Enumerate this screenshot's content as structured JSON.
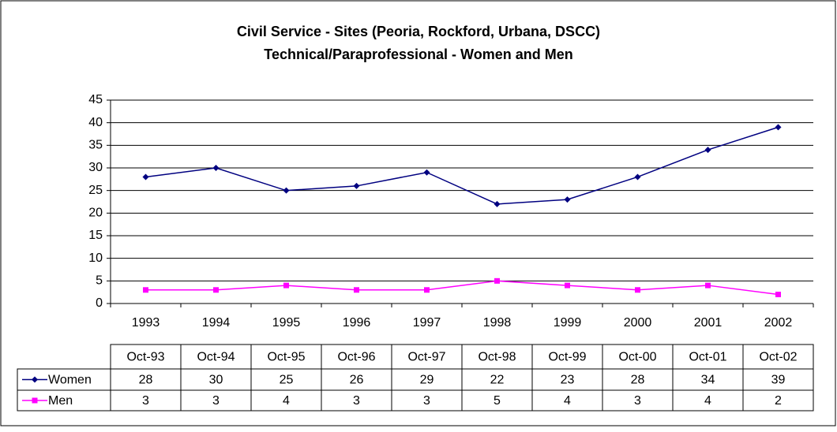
{
  "chart_data": {
    "type": "line",
    "title": "Civil Service - Sites (Peoria, Rockford, Urbana, DSCC)",
    "subtitle": "Technical/Paraprofessional - Women and Men",
    "categories": [
      "1993",
      "1994",
      "1995",
      "1996",
      "1997",
      "1998",
      "1999",
      "2000",
      "2001",
      "2002"
    ],
    "table_columns": [
      "Oct-93",
      "Oct-94",
      "Oct-95",
      "Oct-96",
      "Oct-97",
      "Oct-98",
      "Oct-99",
      "Oct-00",
      "Oct-01",
      "Oct-02"
    ],
    "series": [
      {
        "name": "Women",
        "color": "#000080",
        "marker": "diamond",
        "values": [
          28,
          30,
          25,
          26,
          29,
          22,
          23,
          28,
          34,
          39
        ]
      },
      {
        "name": "Men",
        "color": "#ff00ff",
        "marker": "square",
        "values": [
          3,
          3,
          4,
          3,
          3,
          5,
          4,
          3,
          4,
          2
        ]
      }
    ],
    "ylim": [
      0,
      45
    ],
    "yticks": [
      0,
      5,
      10,
      15,
      20,
      25,
      30,
      35,
      40,
      45
    ],
    "grid": true
  }
}
